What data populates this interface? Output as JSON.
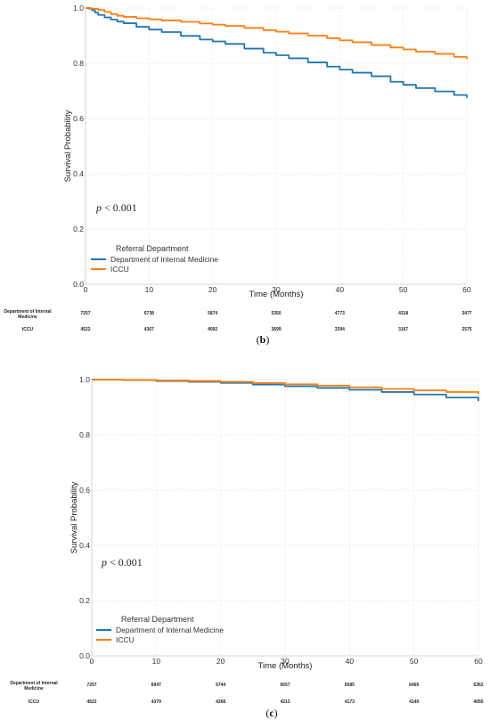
{
  "colors": {
    "internal_medicine": "#1f77b4",
    "iccu": "#ff7f0e",
    "grid": "#e6e6e6"
  },
  "chart_data": [
    {
      "type": "line",
      "panel_label": "b",
      "xlabel": "Time (Months)",
      "ylabel": "Survival Probability",
      "xlim": [
        0,
        60
      ],
      "ylim": [
        0,
        1.0
      ],
      "xticks": [
        0,
        10,
        20,
        30,
        40,
        50,
        60
      ],
      "yticks": [
        0.0,
        0.2,
        0.4,
        0.6,
        0.8,
        1.0
      ],
      "x_tick_labels": [
        "0",
        "10",
        "20",
        "30",
        "40",
        "50",
        "60"
      ],
      "y_tick_labels": [
        "0.0",
        "0.2",
        "0.4",
        "0.6",
        "0.8",
        "1.0"
      ],
      "grid": true,
      "legend_title": "Referral Department",
      "legend_location": "lower-left",
      "p_value_prefix": "p",
      "p_value_text": " < 0.001",
      "series": [
        {
          "name": "Department of Internal Medicine",
          "color": "#1f77b4",
          "x": [
            0,
            0.5,
            1,
            1.5,
            2,
            3,
            4,
            5,
            6,
            8,
            10,
            12,
            15,
            18,
            20,
            22,
            25,
            28,
            30,
            32,
            35,
            38,
            40,
            42,
            45,
            48,
            50,
            52,
            55,
            58,
            60
          ],
          "y": [
            1.0,
            0.998,
            0.992,
            0.983,
            0.975,
            0.966,
            0.958,
            0.951,
            0.945,
            0.932,
            0.922,
            0.913,
            0.899,
            0.886,
            0.879,
            0.87,
            0.853,
            0.838,
            0.829,
            0.818,
            0.803,
            0.788,
            0.777,
            0.766,
            0.753,
            0.733,
            0.722,
            0.71,
            0.698,
            0.685,
            0.675
          ]
        },
        {
          "name": "ICCU",
          "color": "#ff7f0e",
          "x": [
            0,
            1,
            2,
            3,
            4,
            5,
            6,
            8,
            10,
            12,
            15,
            18,
            20,
            22,
            25,
            28,
            30,
            32,
            35,
            38,
            40,
            42,
            45,
            48,
            50,
            52,
            55,
            58,
            60
          ],
          "y": [
            1.0,
            0.997,
            0.993,
            0.986,
            0.978,
            0.972,
            0.968,
            0.963,
            0.959,
            0.955,
            0.95,
            0.944,
            0.94,
            0.935,
            0.928,
            0.92,
            0.914,
            0.908,
            0.9,
            0.891,
            0.883,
            0.876,
            0.866,
            0.857,
            0.85,
            0.842,
            0.834,
            0.823,
            0.815
          ]
        }
      ],
      "risk_table": {
        "times": [
          0,
          10,
          20,
          30,
          40,
          50,
          60
        ],
        "rows": [
          {
            "label_line1": "Department of Internal",
            "label_line2": "Medicine",
            "values": [
              "7257",
              "6738",
              "5874",
              "5350",
              "4773",
              "4318",
              "3477"
            ]
          },
          {
            "label_line1": "ICCU",
            "label_line2": "",
            "values": [
              "4522",
              "4367",
              "4092",
              "3699",
              "3394",
              "3167",
              "2575"
            ]
          }
        ]
      }
    },
    {
      "type": "line",
      "panel_label": "c",
      "xlabel": "Time (Months)",
      "ylabel": "Survival Probability",
      "xlim": [
        0,
        60
      ],
      "ylim": [
        0,
        1.0
      ],
      "xticks": [
        0,
        10,
        20,
        30,
        40,
        50,
        60
      ],
      "yticks": [
        0.0,
        0.2,
        0.4,
        0.6,
        0.8,
        1.0
      ],
      "x_tick_labels": [
        "0",
        "10",
        "20",
        "30",
        "40",
        "50",
        "60"
      ],
      "y_tick_labels": [
        "0.0",
        "0.2",
        "0.4",
        "0.6",
        "0.8",
        "1.0"
      ],
      "grid": true,
      "legend_title": "Referral Department",
      "legend_location": "lower-left",
      "p_value_prefix": "p",
      "p_value_text": " < 0.001",
      "series": [
        {
          "name": "Department of Internal Medicine",
          "color": "#1f77b4",
          "x": [
            0,
            5,
            10,
            15,
            20,
            25,
            30,
            35,
            40,
            45,
            50,
            55,
            60
          ],
          "y": [
            1.0,
            0.998,
            0.995,
            0.992,
            0.988,
            0.982,
            0.976,
            0.97,
            0.963,
            0.955,
            0.946,
            0.935,
            0.922
          ]
        },
        {
          "name": "ICCU",
          "color": "#ff7f0e",
          "x": [
            0,
            5,
            10,
            15,
            20,
            25,
            30,
            35,
            40,
            45,
            50,
            55,
            60
          ],
          "y": [
            1.0,
            0.999,
            0.997,
            0.995,
            0.992,
            0.988,
            0.983,
            0.978,
            0.972,
            0.966,
            0.961,
            0.955,
            0.947
          ]
        }
      ],
      "risk_table": {
        "times": [
          0,
          10,
          20,
          30,
          40,
          50,
          60
        ],
        "rows": [
          {
            "label_line1": "Department of Internal",
            "label_line2": "Medicine",
            "values": [
              "7257",
              "6947",
              "6744",
              "6657",
              "6585",
              "6469",
              "6362"
            ]
          },
          {
            "label_line1": "ICCU",
            "label_line2": "",
            "values": [
              "4522",
              "4379",
              "4268",
              "4213",
              "4173",
              "4149",
              "4050"
            ]
          }
        ]
      }
    }
  ]
}
